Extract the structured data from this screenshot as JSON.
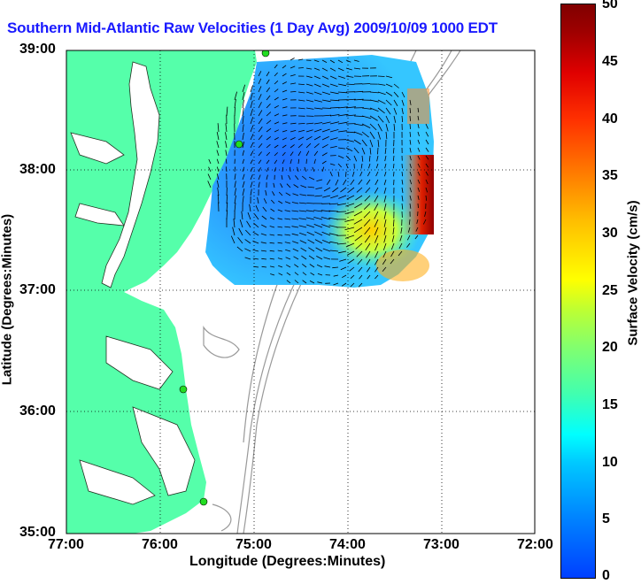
{
  "title": "Southern Mid-Atlantic Raw Velocities (1 Day Avg) 2009/10/09 1000 EDT",
  "x_axis": {
    "label": "Longitude (Degrees:Minutes)",
    "ticks": [
      "77:00",
      "76:00",
      "75:00",
      "74:00",
      "73:00",
      "72:00"
    ]
  },
  "y_axis": {
    "label": "Latitude (Degrees:Minutes)",
    "ticks": [
      "39:00",
      "38:00",
      "37:00",
      "36:00",
      "35:00"
    ]
  },
  "colorbar": {
    "label": "Surface Velocity (cm/s)",
    "ticks": [
      "50",
      "45",
      "40",
      "35",
      "30",
      "25",
      "20",
      "15",
      "10",
      "5",
      "0"
    ],
    "min": 0,
    "max": 50
  },
  "colors": {
    "land": "#55ffaa",
    "title": "#1a1aff",
    "bathymetry": "#999999",
    "station": "#22dd22"
  }
}
